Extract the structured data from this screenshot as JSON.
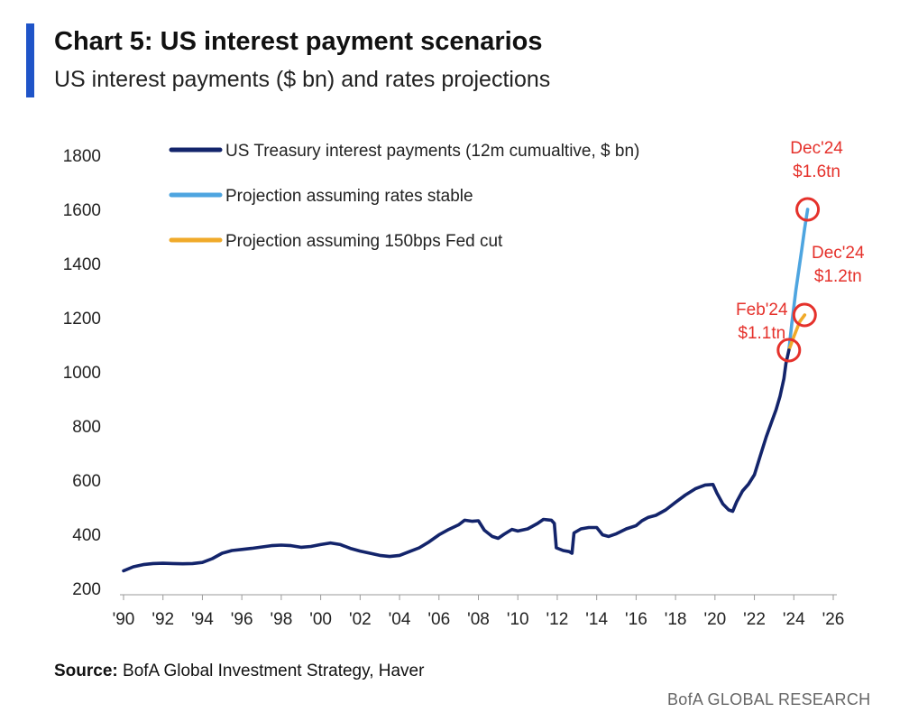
{
  "header": {
    "title": "Chart 5: US interest payment scenarios",
    "subtitle": "US interest payments ($ bn) and rates projections"
  },
  "footer": {
    "source_label": "Source:",
    "source_text": "BofA Global Investment Strategy, Haver",
    "brand": "BofA GLOBAL RESEARCH"
  },
  "colors": {
    "accent": "#1f54c8",
    "actual": "#13246b",
    "stable": "#4ea5e0",
    "cut": "#f0aa2a",
    "annotation": "#e5312b"
  },
  "chart_data": {
    "type": "line",
    "ylim": [
      200,
      1800
    ],
    "yticks": [
      200,
      400,
      600,
      800,
      1000,
      1200,
      1400,
      1600,
      1800
    ],
    "xlim": [
      1990,
      2026
    ],
    "xticks": [
      {
        "value": 1990,
        "label": "'90"
      },
      {
        "value": 1992,
        "label": "'92"
      },
      {
        "value": 1994,
        "label": "'94"
      },
      {
        "value": 1996,
        "label": "'96"
      },
      {
        "value": 1998,
        "label": "'98"
      },
      {
        "value": 2000,
        "label": "'00"
      },
      {
        "value": 2002,
        "label": "'02"
      },
      {
        "value": 2004,
        "label": "'04"
      },
      {
        "value": 2006,
        "label": "'06"
      },
      {
        "value": 2008,
        "label": "'08"
      },
      {
        "value": 2010,
        "label": "'10"
      },
      {
        "value": 2012,
        "label": "'12"
      },
      {
        "value": 2014,
        "label": "'14"
      },
      {
        "value": 2016,
        "label": "'16"
      },
      {
        "value": 2018,
        "label": "'18"
      },
      {
        "value": 2020,
        "label": "'20"
      },
      {
        "value": 2022,
        "label": "'22"
      },
      {
        "value": 2024,
        "label": "'24"
      },
      {
        "value": 2026,
        "label": "'26"
      }
    ],
    "legend_position": "top-left",
    "grid": false,
    "series": [
      {
        "name": "US Treasury interest payments (12m cumualtive, $ bn)",
        "color": "#13246b",
        "points": [
          [
            1990.0,
            265
          ],
          [
            1990.5,
            280
          ],
          [
            1991.0,
            288
          ],
          [
            1991.5,
            292
          ],
          [
            1992.0,
            293
          ],
          [
            1992.5,
            292
          ],
          [
            1993.0,
            291
          ],
          [
            1993.5,
            292
          ],
          [
            1994.0,
            296
          ],
          [
            1994.5,
            310
          ],
          [
            1995.0,
            330
          ],
          [
            1995.5,
            340
          ],
          [
            1996.0,
            344
          ],
          [
            1996.5,
            348
          ],
          [
            1997.0,
            353
          ],
          [
            1997.5,
            358
          ],
          [
            1998.0,
            360
          ],
          [
            1998.5,
            358
          ],
          [
            1999.0,
            352
          ],
          [
            1999.5,
            355
          ],
          [
            2000.0,
            362
          ],
          [
            2000.5,
            368
          ],
          [
            2001.0,
            362
          ],
          [
            2001.5,
            348
          ],
          [
            2002.0,
            338
          ],
          [
            2002.5,
            330
          ],
          [
            2003.0,
            322
          ],
          [
            2003.5,
            318
          ],
          [
            2004.0,
            322
          ],
          [
            2004.5,
            336
          ],
          [
            2005.0,
            350
          ],
          [
            2005.5,
            372
          ],
          [
            2006.0,
            398
          ],
          [
            2006.5,
            418
          ],
          [
            2007.0,
            435
          ],
          [
            2007.3,
            452
          ],
          [
            2007.7,
            448
          ],
          [
            2008.0,
            450
          ],
          [
            2008.3,
            415
          ],
          [
            2008.7,
            392
          ],
          [
            2009.0,
            385
          ],
          [
            2009.3,
            400
          ],
          [
            2009.7,
            418
          ],
          [
            2010.0,
            412
          ],
          [
            2010.5,
            420
          ],
          [
            2011.0,
            440
          ],
          [
            2011.3,
            455
          ],
          [
            2011.7,
            452
          ],
          [
            2011.85,
            440
          ],
          [
            2011.95,
            350
          ],
          [
            2012.3,
            340
          ],
          [
            2012.6,
            336
          ],
          [
            2012.75,
            330
          ],
          [
            2012.85,
            405
          ],
          [
            2013.2,
            420
          ],
          [
            2013.6,
            425
          ],
          [
            2014.0,
            425
          ],
          [
            2014.3,
            398
          ],
          [
            2014.6,
            392
          ],
          [
            2015.0,
            402
          ],
          [
            2015.5,
            420
          ],
          [
            2016.0,
            432
          ],
          [
            2016.3,
            450
          ],
          [
            2016.6,
            462
          ],
          [
            2017.0,
            470
          ],
          [
            2017.5,
            490
          ],
          [
            2018.0,
            518
          ],
          [
            2018.5,
            545
          ],
          [
            2019.0,
            568
          ],
          [
            2019.5,
            582
          ],
          [
            2019.9,
            584
          ],
          [
            2020.1,
            552
          ],
          [
            2020.4,
            512
          ],
          [
            2020.7,
            490
          ],
          [
            2020.9,
            485
          ],
          [
            2021.1,
            520
          ],
          [
            2021.4,
            560
          ],
          [
            2021.7,
            585
          ],
          [
            2022.0,
            620
          ],
          [
            2022.3,
            690
          ],
          [
            2022.6,
            760
          ],
          [
            2022.9,
            820
          ],
          [
            2023.1,
            860
          ],
          [
            2023.3,
            910
          ],
          [
            2023.5,
            975
          ],
          [
            2023.6,
            1030
          ],
          [
            2023.75,
            1080
          ]
        ]
      },
      {
        "name": "Projection assuming rates stable",
        "color": "#4ea5e0",
        "points": [
          [
            2023.75,
            1080
          ],
          [
            2023.9,
            1180
          ],
          [
            2024.1,
            1300
          ],
          [
            2024.4,
            1450
          ],
          [
            2024.55,
            1530
          ],
          [
            2024.7,
            1600
          ]
        ]
      },
      {
        "name": "Projection assuming 150bps Fed cut",
        "color": "#f0aa2a",
        "points": [
          [
            2023.75,
            1080
          ],
          [
            2024.0,
            1130
          ],
          [
            2024.3,
            1185
          ],
          [
            2024.55,
            1210
          ]
        ]
      }
    ],
    "annotations": [
      {
        "line1": "Feb'24",
        "line2": "$1.1tn",
        "x": 2023.75,
        "y": 1080,
        "label_side": "left"
      },
      {
        "line1": "Dec'24",
        "line2": "$1.6tn",
        "x": 2024.7,
        "y": 1600,
        "label_side": "above"
      },
      {
        "line1": "Dec'24",
        "line2": "$1.2tn",
        "x": 2024.55,
        "y": 1210,
        "label_side": "above-right"
      }
    ]
  }
}
